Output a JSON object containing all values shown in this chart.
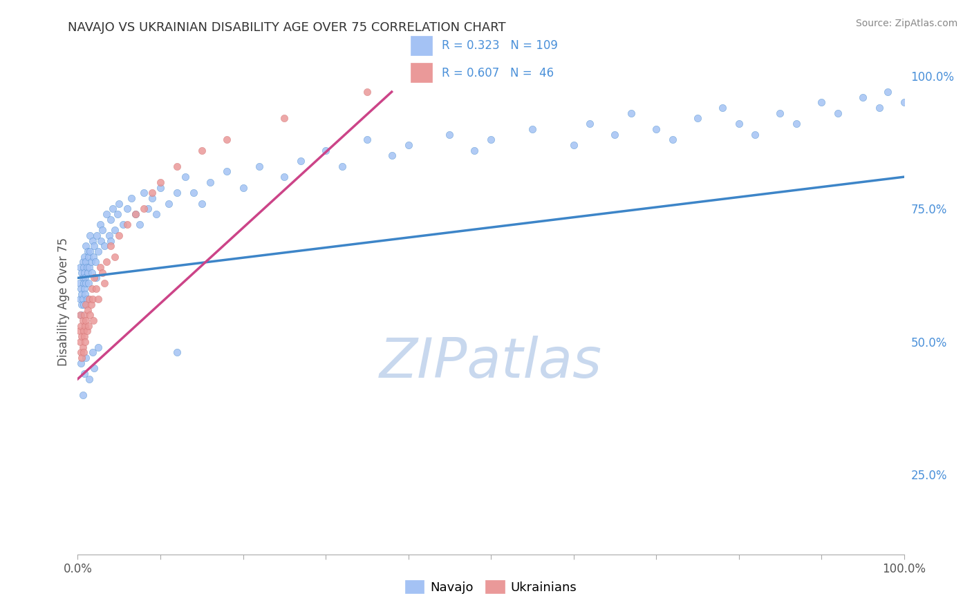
{
  "title": "NAVAJO VS UKRAINIAN DISABILITY AGE OVER 75 CORRELATION CHART",
  "source": "Source: ZipAtlas.com",
  "ylabel": "Disability Age Over 75",
  "xlim": [
    0,
    1.0
  ],
  "ylim": [
    0.1,
    1.05
  ],
  "navajo_color": "#a4c2f4",
  "ukrainian_color": "#ea9999",
  "navajo_line_color": "#3d85c8",
  "ukrainian_line_color": "#cc4488",
  "right_tick_color": "#4a90d9",
  "navajo_R": 0.323,
  "navajo_N": 109,
  "ukrainian_R": 0.607,
  "ukrainian_N": 46,
  "legend_label_navajo": "Navajo",
  "legend_label_ukrainian": "Ukrainians",
  "watermark": "ZIPatlas",
  "watermark_color": "#c8d8ee",
  "background_color": "#ffffff",
  "grid_color": "#cccccc",
  "title_color": "#333333",
  "axis_label_color": "#555555",
  "navajo_x": [
    0.002,
    0.003,
    0.003,
    0.004,
    0.004,
    0.005,
    0.005,
    0.005,
    0.006,
    0.006,
    0.006,
    0.007,
    0.007,
    0.007,
    0.008,
    0.008,
    0.008,
    0.009,
    0.009,
    0.01,
    0.01,
    0.01,
    0.011,
    0.011,
    0.012,
    0.012,
    0.013,
    0.013,
    0.014,
    0.015,
    0.015,
    0.016,
    0.017,
    0.018,
    0.019,
    0.02,
    0.021,
    0.022,
    0.023,
    0.025,
    0.027,
    0.028,
    0.03,
    0.032,
    0.035,
    0.038,
    0.04,
    0.04,
    0.042,
    0.045,
    0.048,
    0.05,
    0.055,
    0.06,
    0.065,
    0.07,
    0.075,
    0.08,
    0.085,
    0.09,
    0.095,
    0.1,
    0.11,
    0.12,
    0.13,
    0.14,
    0.15,
    0.16,
    0.18,
    0.2,
    0.22,
    0.25,
    0.27,
    0.3,
    0.32,
    0.35,
    0.38,
    0.4,
    0.45,
    0.48,
    0.5,
    0.55,
    0.6,
    0.62,
    0.65,
    0.67,
    0.7,
    0.72,
    0.75,
    0.78,
    0.8,
    0.82,
    0.85,
    0.87,
    0.9,
    0.92,
    0.95,
    0.97,
    0.98,
    1.0,
    0.004,
    0.006,
    0.008,
    0.01,
    0.014,
    0.018,
    0.02,
    0.025,
    0.12
  ],
  "navajo_y": [
    0.61,
    0.58,
    0.64,
    0.6,
    0.55,
    0.63,
    0.59,
    0.57,
    0.62,
    0.58,
    0.65,
    0.61,
    0.57,
    0.64,
    0.63,
    0.6,
    0.66,
    0.62,
    0.59,
    0.65,
    0.61,
    0.68,
    0.64,
    0.58,
    0.67,
    0.63,
    0.66,
    0.61,
    0.64,
    0.7,
    0.67,
    0.65,
    0.63,
    0.69,
    0.66,
    0.68,
    0.65,
    0.62,
    0.7,
    0.67,
    0.72,
    0.69,
    0.71,
    0.68,
    0.74,
    0.7,
    0.73,
    0.69,
    0.75,
    0.71,
    0.74,
    0.76,
    0.72,
    0.75,
    0.77,
    0.74,
    0.72,
    0.78,
    0.75,
    0.77,
    0.74,
    0.79,
    0.76,
    0.78,
    0.81,
    0.78,
    0.76,
    0.8,
    0.82,
    0.79,
    0.83,
    0.81,
    0.84,
    0.86,
    0.83,
    0.88,
    0.85,
    0.87,
    0.89,
    0.86,
    0.88,
    0.9,
    0.87,
    0.91,
    0.89,
    0.93,
    0.9,
    0.88,
    0.92,
    0.94,
    0.91,
    0.89,
    0.93,
    0.91,
    0.95,
    0.93,
    0.96,
    0.94,
    0.97,
    0.95,
    0.46,
    0.4,
    0.44,
    0.47,
    0.43,
    0.48,
    0.45,
    0.49,
    0.48
  ],
  "ukrainian_x": [
    0.002,
    0.003,
    0.003,
    0.004,
    0.004,
    0.005,
    0.005,
    0.006,
    0.006,
    0.007,
    0.007,
    0.008,
    0.008,
    0.009,
    0.009,
    0.01,
    0.01,
    0.011,
    0.012,
    0.013,
    0.014,
    0.015,
    0.016,
    0.017,
    0.018,
    0.019,
    0.02,
    0.022,
    0.025,
    0.027,
    0.03,
    0.032,
    0.035,
    0.04,
    0.045,
    0.05,
    0.06,
    0.07,
    0.08,
    0.09,
    0.1,
    0.12,
    0.15,
    0.18,
    0.25,
    0.35
  ],
  "ukrainian_y": [
    0.52,
    0.5,
    0.55,
    0.48,
    0.53,
    0.51,
    0.47,
    0.54,
    0.49,
    0.52,
    0.48,
    0.55,
    0.51,
    0.5,
    0.53,
    0.57,
    0.54,
    0.52,
    0.56,
    0.53,
    0.58,
    0.55,
    0.57,
    0.6,
    0.58,
    0.54,
    0.62,
    0.6,
    0.58,
    0.64,
    0.63,
    0.61,
    0.65,
    0.68,
    0.66,
    0.7,
    0.72,
    0.74,
    0.75,
    0.78,
    0.8,
    0.83,
    0.86,
    0.88,
    0.92,
    0.97
  ],
  "navajo_trend_x": [
    0.0,
    1.0
  ],
  "navajo_trend_y": [
    0.62,
    0.81
  ],
  "ukrainian_trend_x": [
    0.0,
    0.38
  ],
  "ukrainian_trend_y": [
    0.43,
    0.97
  ]
}
